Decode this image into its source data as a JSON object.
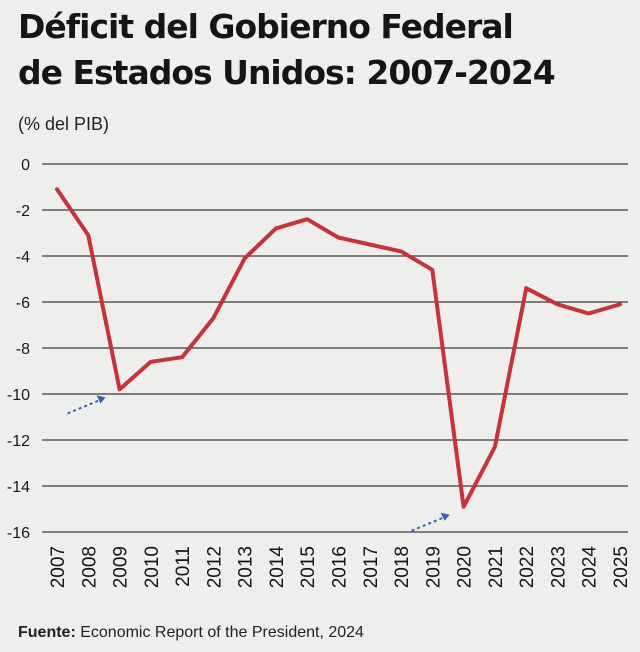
{
  "chart_data": {
    "type": "line",
    "title_lines": [
      "Déficit del Gobierno Federal",
      "de Estados Unidos: 2007-2024"
    ],
    "units_label": "(% del PIB)",
    "categories": [
      "2007",
      "2008",
      "2009",
      "2010",
      "2011",
      "2012",
      "2013",
      "2014",
      "2015",
      "2016",
      "2017",
      "2018",
      "2019",
      "2020",
      "2021",
      "2022",
      "2023",
      "2024",
      "2025"
    ],
    "series": [
      {
        "values": [
          -1.1,
          -3.1,
          -9.8,
          -8.6,
          -8.4,
          -6.7,
          -4.1,
          -2.8,
          -2.4,
          -3.2,
          -3.5,
          -3.8,
          -4.6,
          -14.9,
          -12.3,
          -5.4,
          -6.1,
          -6.5,
          -6.1
        ]
      }
    ],
    "y_ticks": [
      0,
      -2,
      -4,
      -6,
      -8,
      -10,
      -12,
      -14,
      -16
    ],
    "ylim": [
      -16,
      0
    ],
    "grid": true,
    "line_color": "#c4343a",
    "annotations": [
      {
        "type": "arrow",
        "points_to": "2009",
        "color": "#3a5fb0"
      },
      {
        "type": "arrow",
        "points_to": "2020",
        "color": "#3a5fb0"
      }
    ]
  },
  "source": {
    "label": "Fuente:",
    "text": " Economic Report of the President, 2024"
  }
}
